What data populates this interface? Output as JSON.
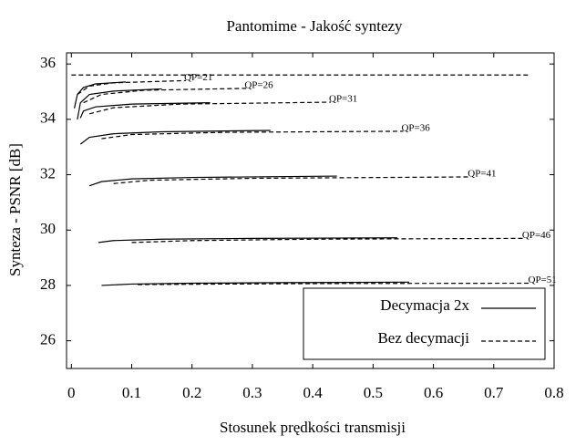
{
  "chart_data": {
    "type": "line",
    "title": "Pantomime - Jakość syntezy",
    "x_label": "Stosunek prędkości transmisji",
    "y_label": "Synteza - PSNR [dB]",
    "xlim": [
      -0.008,
      0.8
    ],
    "ylim": [
      25,
      36.4
    ],
    "xticks": [
      0,
      0.1,
      0.2,
      0.3,
      0.4,
      0.5,
      0.6,
      0.7,
      0.8
    ],
    "yticks": [
      26,
      28,
      30,
      32,
      34,
      36
    ],
    "legend": "lower right",
    "series": [
      {
        "name": "Decymacja 2x",
        "color": "#000000",
        "dashed": false,
        "curves": [
          {
            "x": [
              0.005,
              0.01,
              0.02,
              0.04,
              0.09
            ],
            "values": [
              34.4,
              34.9,
              35.15,
              35.28,
              35.35
            ]
          },
          {
            "x": [
              0.01,
              0.015,
              0.03,
              0.07,
              0.15
            ],
            "values": [
              34.0,
              34.6,
              34.9,
              35.02,
              35.1
            ]
          },
          {
            "x": [
              0.015,
              0.02,
              0.04,
              0.1,
              0.23
            ],
            "values": [
              34.05,
              34.3,
              34.45,
              34.55,
              34.6
            ]
          },
          {
            "x": [
              0.015,
              0.03,
              0.07,
              0.15,
              0.33
            ],
            "values": [
              33.1,
              33.35,
              33.48,
              33.55,
              33.6
            ]
          },
          {
            "x": [
              0.03,
              0.05,
              0.1,
              0.2,
              0.44
            ],
            "values": [
              31.6,
              31.75,
              31.85,
              31.9,
              31.95
            ]
          },
          {
            "x": [
              0.045,
              0.07,
              0.15,
              0.3,
              0.54
            ],
            "values": [
              29.55,
              29.62,
              29.67,
              29.7,
              29.72
            ]
          },
          {
            "x": [
              0.05,
              0.1,
              0.2,
              0.35,
              0.56
            ],
            "values": [
              28.0,
              28.05,
              28.08,
              28.1,
              28.12
            ]
          }
        ]
      },
      {
        "name": "Bez decymacji",
        "color": "#000000",
        "dashed": true,
        "curves": [
          {
            "label": "QP=21",
            "x": [
              0.01,
              0.03,
              0.07,
              0.19
            ],
            "values": [
              34.9,
              35.2,
              35.32,
              35.4
            ]
          },
          {
            "label": "QP=26",
            "x": [
              0.02,
              0.05,
              0.12,
              0.29
            ],
            "values": [
              34.6,
              34.9,
              35.05,
              35.12
            ]
          },
          {
            "label": "QP=31",
            "x": [
              0.03,
              0.07,
              0.18,
              0.43
            ],
            "values": [
              34.2,
              34.42,
              34.55,
              34.62
            ]
          },
          {
            "label": "QP=36",
            "x": [
              0.05,
              0.1,
              0.25,
              0.55
            ],
            "values": [
              33.3,
              33.45,
              33.53,
              33.57
            ]
          },
          {
            "label": "QP=41",
            "x": [
              0.07,
              0.13,
              0.3,
              0.66
            ],
            "values": [
              31.68,
              31.8,
              31.87,
              31.92
            ]
          },
          {
            "label": "QP=46",
            "x": [
              0.1,
              0.2,
              0.4,
              0.75
            ],
            "values": [
              29.55,
              29.62,
              29.67,
              29.7
            ]
          },
          {
            "label": "QP=51",
            "x": [
              0.11,
              0.25,
              0.45,
              0.76
            ],
            "values": [
              28.03,
              28.05,
              28.07,
              28.08
            ]
          },
          {
            "x": [
              0.0,
              0.76
            ],
            "values": [
              35.6,
              35.6
            ]
          }
        ]
      }
    ]
  }
}
